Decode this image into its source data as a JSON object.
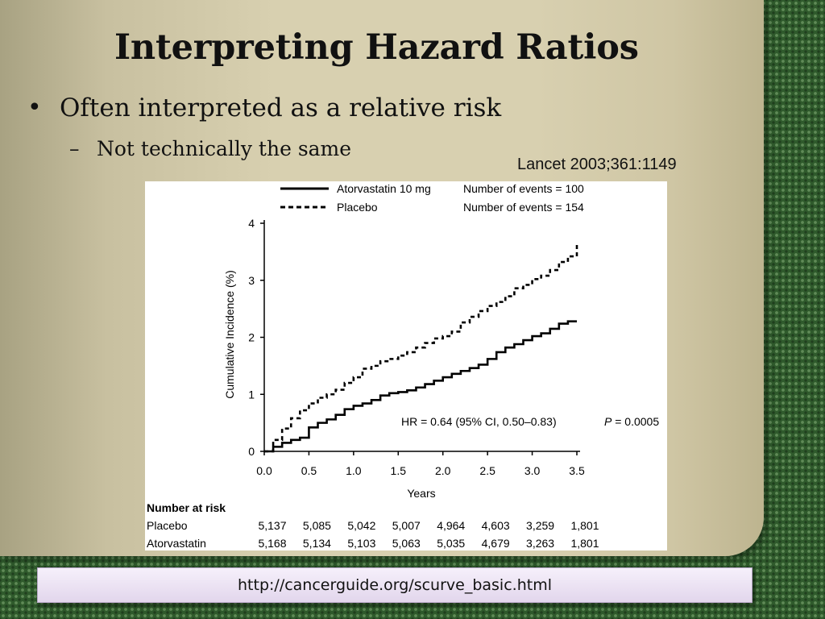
{
  "slide": {
    "title": "Interpreting Hazard Ratios",
    "bullet": "Often interpreted as a relative risk",
    "subbullet": "Not technically the same",
    "citation": "Lancet 2003;361:1149",
    "url": "http://cancerguide.org/scurve_basic.html"
  },
  "chart_data": {
    "type": "line",
    "title": "",
    "xlabel": "Years",
    "ylabel": "Cumulative Incidence (%)",
    "xlim": [
      0,
      3.5
    ],
    "ylim": [
      0,
      4
    ],
    "xticks": [
      "0.0",
      "0.5",
      "1.0",
      "1.5",
      "2.0",
      "2.5",
      "3.0",
      "3.5"
    ],
    "yticks": [
      "0",
      "1",
      "2",
      "3",
      "4"
    ],
    "legend_position": "top",
    "annotation": "HR = 0.64 (95% CI, 0.50–0.83)",
    "p_value": {
      "label": "P",
      "value": " = 0.0005"
    },
    "series": [
      {
        "name": "Atorvastatin 10 mg",
        "events_label": "Number of events = 100",
        "style": "solid",
        "color": "#000000",
        "x": [
          0,
          0.1,
          0.2,
          0.3,
          0.4,
          0.5,
          0.6,
          0.7,
          0.8,
          0.9,
          1.0,
          1.1,
          1.2,
          1.3,
          1.4,
          1.5,
          1.6,
          1.7,
          1.8,
          1.9,
          2.0,
          2.1,
          2.2,
          2.3,
          2.4,
          2.5,
          2.6,
          2.7,
          2.8,
          2.9,
          3.0,
          3.1,
          3.2,
          3.3,
          3.4,
          3.5
        ],
        "y": [
          0,
          0.08,
          0.15,
          0.2,
          0.24,
          0.42,
          0.5,
          0.56,
          0.64,
          0.74,
          0.8,
          0.84,
          0.9,
          0.98,
          1.02,
          1.04,
          1.07,
          1.12,
          1.18,
          1.24,
          1.3,
          1.36,
          1.41,
          1.46,
          1.52,
          1.62,
          1.74,
          1.82,
          1.88,
          1.95,
          2.02,
          2.07,
          2.15,
          2.24,
          2.28,
          2.28
        ]
      },
      {
        "name": "Placebo",
        "events_label": "Number of events = 154",
        "style": "dashed",
        "color": "#000000",
        "x": [
          0,
          0.1,
          0.2,
          0.3,
          0.4,
          0.5,
          0.6,
          0.7,
          0.8,
          0.9,
          1.0,
          1.1,
          1.2,
          1.3,
          1.4,
          1.5,
          1.6,
          1.7,
          1.8,
          1.9,
          2.0,
          2.1,
          2.2,
          2.3,
          2.4,
          2.5,
          2.6,
          2.7,
          2.8,
          2.9,
          3.0,
          3.1,
          3.2,
          3.3,
          3.4,
          3.5
        ],
        "y": [
          0,
          0.2,
          0.4,
          0.58,
          0.72,
          0.84,
          0.94,
          1.0,
          1.08,
          1.2,
          1.3,
          1.45,
          1.5,
          1.58,
          1.62,
          1.68,
          1.74,
          1.82,
          1.9,
          1.98,
          2.02,
          2.1,
          2.26,
          2.36,
          2.46,
          2.55,
          2.62,
          2.72,
          2.86,
          2.92,
          3.02,
          3.08,
          3.18,
          3.32,
          3.42,
          3.62
        ]
      }
    ],
    "risk_table": {
      "header": "Number at risk",
      "rows": [
        {
          "label": "Placebo",
          "values": [
            "5,137",
            "5,085",
            "5,042",
            "5,007",
            "4,964",
            "4,603",
            "3,259",
            "1,801"
          ]
        },
        {
          "label": "Atorvastatin",
          "values": [
            "5,168",
            "5,134",
            "5,103",
            "5,063",
            "5,035",
            "4,679",
            "3,263",
            "1,801"
          ]
        }
      ]
    }
  }
}
